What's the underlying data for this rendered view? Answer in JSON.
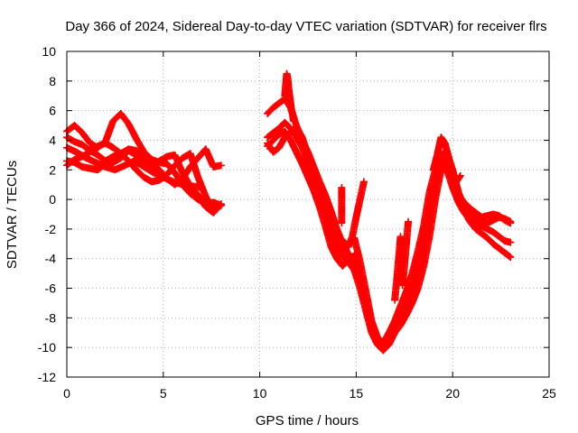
{
  "chart_data": {
    "type": "scatter",
    "title": "Day 366 of 2024, Sidereal Day-to-day VTEC variation (SDTVAR) for receiver flrs",
    "xlabel": "GPS time / hours",
    "ylabel": "SDTVAR / TECUs",
    "xlim": [
      0,
      25
    ],
    "ylim": [
      -12,
      10
    ],
    "x_ticks": [
      0,
      5,
      10,
      15,
      20,
      25
    ],
    "y_ticks": [
      -12,
      -10,
      -8,
      -6,
      -4,
      -2,
      0,
      2,
      4,
      6,
      8,
      10
    ],
    "grid": true,
    "marker": "plus",
    "marker_color": "#ff0000",
    "series": [
      {
        "x": [
          0.0,
          0.4,
          0.8,
          1.2,
          1.6,
          2.0,
          2.4,
          2.8,
          3.2,
          3.6,
          4.0,
          4.4,
          4.8,
          5.2,
          5.6,
          6.0,
          6.4,
          6.8,
          7.2,
          7.6,
          8.0
        ],
        "y": [
          4.6,
          5.0,
          4.5,
          3.8,
          3.5,
          3.9,
          5.3,
          5.8,
          5.1,
          4.1,
          3.2,
          2.7,
          2.5,
          2.4,
          1.8,
          1.0,
          0.4,
          0.0,
          -0.3,
          -0.2,
          -0.4
        ]
      },
      {
        "x": [
          0.0,
          0.4,
          0.8,
          1.2,
          1.6,
          2.0,
          2.4,
          2.8,
          3.2,
          3.6,
          4.0,
          4.4,
          4.8,
          5.2,
          5.6,
          6.0,
          6.4,
          6.8,
          7.2,
          7.6,
          8.0
        ],
        "y": [
          4.2,
          3.9,
          3.7,
          3.3,
          3.0,
          2.6,
          2.9,
          3.1,
          2.6,
          2.0,
          1.5,
          1.2,
          1.3,
          1.7,
          2.3,
          2.8,
          3.1,
          1.5,
          0.2,
          -0.7,
          -0.4
        ]
      },
      {
        "x": [
          0.0,
          0.4,
          0.8,
          1.2,
          1.6,
          2.0,
          2.4,
          2.8,
          3.2,
          3.6,
          4.0,
          4.4,
          4.8,
          5.2,
          5.6,
          6.0,
          6.4,
          6.8,
          7.2,
          7.6,
          8.0
        ],
        "y": [
          2.6,
          2.5,
          2.2,
          2.1,
          2.0,
          2.4,
          2.5,
          2.8,
          3.3,
          3.0,
          2.4,
          2.2,
          2.6,
          2.9,
          3.0,
          1.8,
          0.9,
          0.3,
          -0.5,
          -0.9,
          -0.3
        ]
      },
      {
        "x": [
          0.0,
          0.4,
          0.8,
          1.2,
          1.6,
          2.0,
          2.4,
          2.8,
          3.2,
          3.6,
          4.0,
          4.4,
          4.8,
          5.2,
          5.6,
          6.0,
          6.4,
          6.8,
          7.2,
          7.6,
          8.0
        ],
        "y": [
          2.3,
          2.7,
          2.9,
          3.2,
          3.6,
          3.8,
          3.5,
          3.1,
          3.4,
          3.3,
          2.9,
          2.4,
          2.0,
          1.4,
          1.0,
          1.4,
          2.2,
          2.8,
          3.4,
          2.2,
          2.3
        ]
      },
      {
        "x": [
          0.0,
          0.5,
          1.0,
          1.5,
          2.0,
          2.5,
          3.0,
          3.5,
          4.0,
          4.5,
          5.0,
          5.5,
          6.0,
          6.5,
          7.0
        ],
        "y": [
          3.5,
          3.2,
          2.8,
          2.5,
          2.2,
          2.0,
          2.3,
          2.6,
          2.2,
          1.8,
          1.5,
          1.2,
          1.0,
          0.9,
          0.8
        ]
      },
      {
        "x": [
          10.4,
          10.7,
          11.0,
          11.3,
          11.6,
          11.9,
          12.2,
          12.5,
          12.8,
          13.1,
          13.4,
          13.7,
          14.0,
          14.3,
          14.6,
          14.9,
          15.2,
          15.5,
          15.8,
          16.1,
          16.4,
          16.7,
          17.0,
          17.3,
          17.6,
          17.9,
          18.2,
          18.5,
          18.8,
          19.1,
          19.4,
          19.7,
          20.0,
          20.3,
          20.6,
          20.9,
          21.2,
          21.5,
          21.8,
          22.1,
          22.4,
          22.7,
          23.0
        ],
        "y": [
          5.8,
          6.2,
          6.5,
          6.8,
          6.2,
          5.0,
          4.0,
          3.2,
          2.2,
          1.2,
          0.3,
          -0.8,
          -2.0,
          -3.0,
          -3.7,
          -4.5,
          -5.5,
          -6.8,
          -8.5,
          -9.6,
          -10.0,
          -9.5,
          -8.5,
          -7.5,
          -6.5,
          -5.5,
          -4.0,
          -2.5,
          -0.5,
          1.5,
          3.0,
          3.2,
          2.0,
          0.5,
          -0.5,
          -1.0,
          -1.3,
          -1.5,
          -1.6,
          -1.4,
          -1.2,
          -1.3,
          -1.5
        ]
      },
      {
        "x": [
          10.4,
          10.7,
          11.0,
          11.3,
          11.6,
          11.9,
          12.2,
          12.5,
          12.8,
          13.1,
          13.4,
          13.7,
          14.0,
          14.3,
          14.6,
          14.9,
          15.2,
          15.5,
          15.8,
          16.1,
          16.4,
          16.7,
          17.0,
          17.3,
          17.6,
          17.9,
          18.2,
          18.5,
          18.8,
          19.1,
          19.4,
          19.7,
          20.0,
          20.3,
          20.6,
          20.9,
          21.2,
          21.5,
          21.8,
          22.1,
          22.4,
          22.7,
          23.0
        ],
        "y": [
          4.2,
          4.5,
          4.8,
          5.2,
          4.8,
          4.2,
          3.5,
          2.5,
          1.5,
          0.3,
          -1.0,
          -2.2,
          -3.2,
          -3.9,
          -4.2,
          -4.8,
          -6.0,
          -7.5,
          -9.0,
          -9.8,
          -10.2,
          -9.8,
          -9.0,
          -8.5,
          -7.8,
          -7.0,
          -6.0,
          -4.5,
          -2.5,
          0.0,
          2.0,
          2.2,
          1.2,
          0.3,
          -0.2,
          -0.6,
          -0.9,
          -1.2,
          -1.1,
          -1.0,
          -1.1,
          -1.4,
          -1.6
        ]
      },
      {
        "x": [
          10.4,
          10.7,
          11.0,
          11.3,
          11.6,
          11.9,
          12.2,
          12.5,
          12.8,
          13.1,
          13.4,
          13.7,
          14.0,
          14.3,
          14.6,
          14.9,
          15.2,
          15.5,
          15.8,
          16.1,
          16.4,
          16.7,
          17.0,
          17.3,
          17.6,
          17.9,
          18.2,
          18.5,
          18.8,
          19.1,
          19.4,
          19.7,
          20.0,
          20.3,
          20.6,
          20.9,
          21.2,
          21.5,
          21.8,
          22.1,
          22.4,
          22.7,
          23.0
        ],
        "y": [
          3.8,
          3.2,
          3.5,
          4.2,
          4.5,
          4.9,
          4.2,
          3.0,
          1.8,
          0.6,
          -0.6,
          -1.8,
          -2.8,
          -3.5,
          -3.0,
          -2.6,
          -4.2,
          -6.2,
          -8.2,
          -9.3,
          -9.7,
          -9.0,
          -8.2,
          -7.2,
          -6.2,
          -5.0,
          -3.5,
          -1.8,
          0.5,
          2.0,
          2.5,
          2.0,
          0.8,
          -0.2,
          -0.9,
          -1.3,
          -1.6,
          -1.8,
          -2.0,
          -2.2,
          -2.5,
          -2.8,
          -2.9
        ]
      },
      {
        "x": [
          10.4,
          10.7,
          11.0,
          11.3,
          11.6,
          11.9,
          12.2,
          12.5,
          12.8,
          13.1,
          13.4,
          13.7,
          14.0,
          14.3,
          14.6,
          14.9,
          15.2,
          15.5,
          15.8,
          16.1,
          16.4,
          16.7,
          17.0,
          17.3,
          17.6,
          17.9,
          18.2,
          18.5,
          18.8,
          19.1,
          19.4,
          19.7,
          20.0,
          20.3,
          20.6,
          20.9,
          21.2,
          21.5,
          21.8,
          22.1,
          22.4,
          22.7,
          23.0
        ],
        "y": [
          3.6,
          4.0,
          4.4,
          4.6,
          4.0,
          3.2,
          2.4,
          1.5,
          0.6,
          -0.5,
          -1.8,
          -3.2,
          -4.0,
          -4.5,
          -4.0,
          -3.8,
          -5.2,
          -7.0,
          -8.8,
          -9.7,
          -10.1,
          -9.6,
          -8.8,
          -8.0,
          -7.2,
          -6.3,
          -5.2,
          -3.5,
          -1.5,
          0.8,
          2.3,
          2.8,
          1.5,
          0.0,
          -0.8,
          -1.5,
          -2.0,
          -2.3,
          -2.6,
          -3.0,
          -3.3,
          -3.6,
          -3.9
        ]
      },
      {
        "x": [
          11.3,
          11.35,
          11.4,
          11.45,
          11.5,
          11.55,
          11.6,
          11.65,
          11.7,
          11.75
        ],
        "y": [
          7.0,
          7.8,
          8.5,
          8.2,
          7.5,
          7.0,
          6.5,
          6.0,
          5.8,
          5.3
        ]
      },
      {
        "x": [
          14.0,
          14.2,
          14.4,
          14.6,
          14.8,
          15.0,
          15.2,
          15.4
        ],
        "y": [
          -3.0,
          -2.7,
          -2.9,
          -3.2,
          -2.5,
          -1.2,
          0.0,
          1.2
        ]
      },
      {
        "x": [
          14.25,
          14.25,
          14.25,
          14.25
        ],
        "y": [
          0.8,
          0.0,
          -0.8,
          -1.6
        ]
      },
      {
        "x": [
          17.0,
          17.1,
          17.2,
          17.3,
          17.4,
          17.5,
          17.6,
          17.7
        ],
        "y": [
          -6.8,
          -5.5,
          -4.0,
          -2.5,
          -5.8,
          -4.5,
          -3.0,
          -1.5
        ]
      },
      {
        "x": [
          19.0,
          19.2,
          19.4,
          19.6,
          19.8,
          20.0,
          20.2,
          20.4
        ],
        "y": [
          2.0,
          3.0,
          4.2,
          3.8,
          2.8,
          1.8,
          1.2,
          1.6
        ]
      }
    ]
  }
}
